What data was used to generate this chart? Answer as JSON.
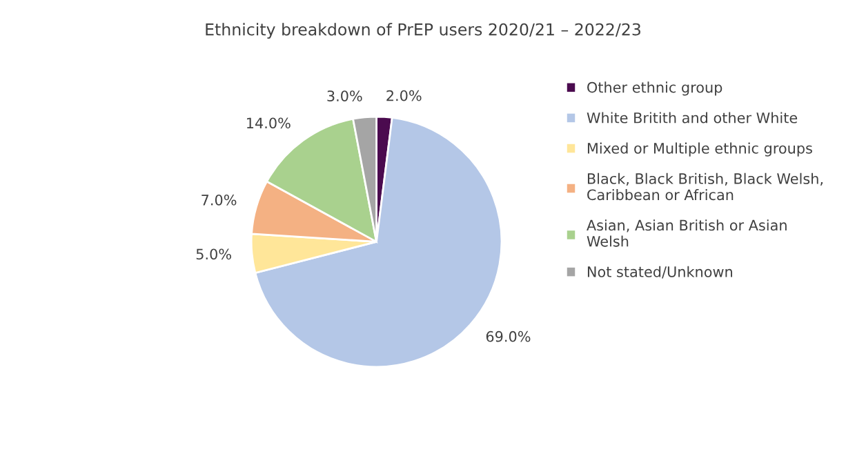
{
  "chart_data": {
    "type": "pie",
    "title": "Ethnicity breakdown of PrEP users 2020/21 – 2022/23",
    "categories": [
      "Other ethnic group",
      "White Britith and other White",
      "Mixed or Multiple ethnic groups",
      "Black, Black British, Black Welsh,\nCaribbean or African",
      "Asian, Asian British or Asian\nWelsh",
      "Not stated/Unknown"
    ],
    "values": [
      2.0,
      69.0,
      5.0,
      7.0,
      14.0,
      3.0
    ],
    "colors": [
      "#4b0b4f",
      "#b4c7e7",
      "#ffe699",
      "#f4b183",
      "#a9d18e",
      "#a5a5a5"
    ],
    "value_labels": [
      "2.0%",
      "69.0%",
      "5.0%",
      "7.0%",
      "14.0%",
      "3.0%"
    ],
    "legend": "right"
  }
}
